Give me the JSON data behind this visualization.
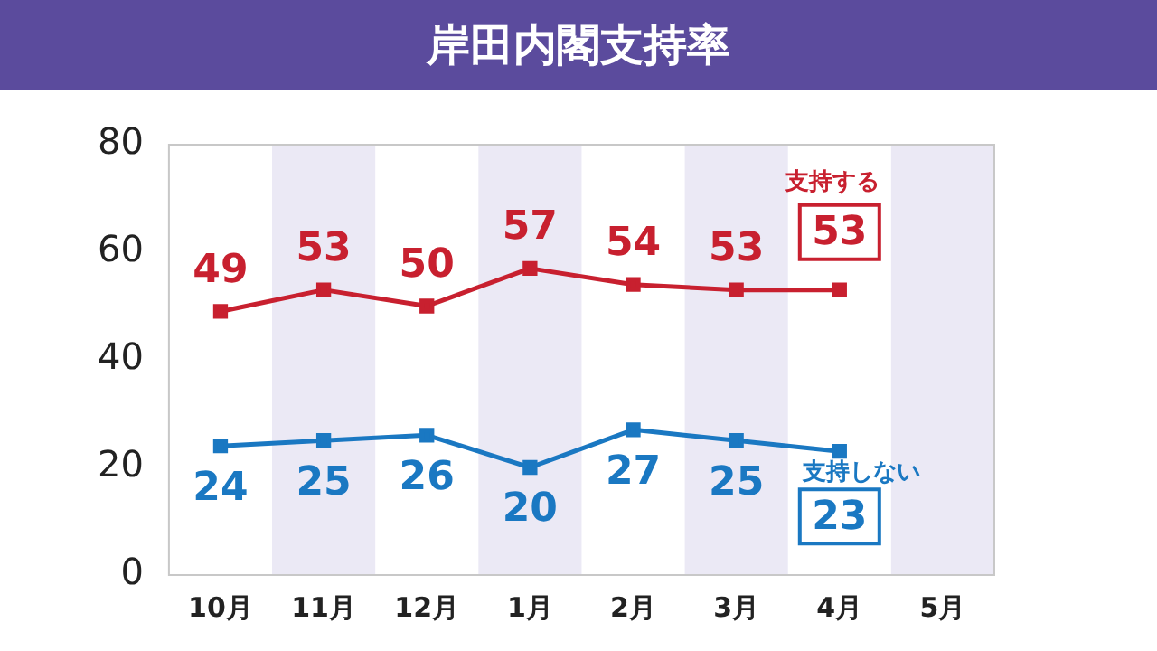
{
  "chart_data": {
    "type": "line",
    "title": "岸田内閣支持率",
    "categories": [
      "10月",
      "11月",
      "12月",
      "1月",
      "2月",
      "3月",
      "4月",
      "5月"
    ],
    "series": [
      {
        "name": "支持する",
        "color": "#c8202f",
        "values": [
          49,
          53,
          50,
          57,
          54,
          53,
          53,
          null
        ]
      },
      {
        "name": "支持しない",
        "color": "#1a78c2",
        "values": [
          24,
          25,
          26,
          20,
          27,
          25,
          23,
          null
        ]
      }
    ],
    "ylim": [
      0,
      80
    ],
    "yticks": [
      0,
      20,
      40,
      60,
      80
    ],
    "grid": false,
    "legend": false,
    "marker": "square",
    "line_style": "solid",
    "data_labels": true,
    "bands": [
      {
        "axis": "x",
        "from": "11月",
        "to": "11月",
        "color": "#ebe9f5"
      },
      {
        "axis": "x",
        "from": "1月",
        "to": "1月",
        "color": "#ebe9f5"
      },
      {
        "axis": "x",
        "from": "3月",
        "to": "3月",
        "color": "#ebe9f5"
      },
      {
        "axis": "x",
        "from": "5月",
        "to": "5月",
        "color": "#ebe9f5"
      }
    ]
  }
}
